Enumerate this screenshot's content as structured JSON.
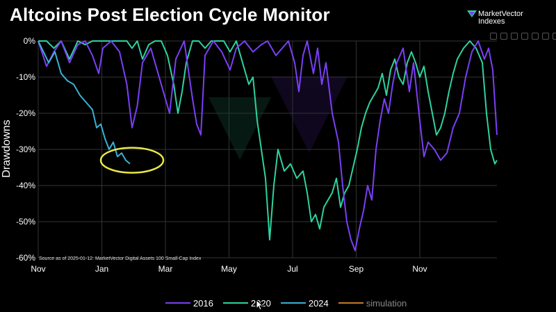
{
  "header": {
    "title": "Altcoins Post Election Cycle Monitor",
    "logo_line1": "MarketVector",
    "logo_line2": "Indexes"
  },
  "source_note": "Source as of 2025-01-12: MarketVector Digital Assets 100 Small-Cap Index",
  "colors": {
    "2016": "#7b3ff5",
    "2020": "#2ed3a0",
    "2024": "#38b2d6",
    "simulation": "#c57a2a",
    "annotation": "#e8e84a",
    "background": "#000000",
    "grid": "#333333"
  },
  "chart_data": {
    "type": "line",
    "title": "Altcoins Post Election Cycle Monitor",
    "xlabel": "",
    "ylabel": "Drawdowns",
    "x_ticks": [
      "Nov",
      "Jan",
      "Mar",
      "May",
      "Jul",
      "Sep",
      "Nov"
    ],
    "y_ticks": [
      "0%",
      "-10%",
      "-20%",
      "-30%",
      "-40%",
      "-50%",
      "-60%"
    ],
    "ylim": [
      -60,
      0
    ],
    "xlim_days": [
      0,
      440
    ],
    "x_unit": "days since election (approx.)",
    "grid": true,
    "legend_position": "bottom",
    "series": [
      {
        "name": "2016",
        "points": [
          [
            0,
            0
          ],
          [
            8,
            -7
          ],
          [
            15,
            -3
          ],
          [
            22,
            0
          ],
          [
            30,
            -6
          ],
          [
            38,
            -1
          ],
          [
            45,
            0
          ],
          [
            52,
            -4
          ],
          [
            58,
            -9
          ],
          [
            62,
            -2
          ],
          [
            70,
            0
          ],
          [
            78,
            -3
          ],
          [
            85,
            -12
          ],
          [
            90,
            -24
          ],
          [
            95,
            -18
          ],
          [
            100,
            -6
          ],
          [
            108,
            -2
          ],
          [
            115,
            -9
          ],
          [
            120,
            -14
          ],
          [
            126,
            -20
          ],
          [
            132,
            -5
          ],
          [
            140,
            0
          ],
          [
            148,
            -16
          ],
          [
            152,
            -23
          ],
          [
            156,
            -26
          ],
          [
            160,
            -4
          ],
          [
            168,
            0
          ],
          [
            176,
            -3
          ],
          [
            184,
            -8
          ],
          [
            190,
            -2
          ],
          [
            198,
            0
          ],
          [
            206,
            -3
          ],
          [
            214,
            -1
          ],
          [
            220,
            0
          ],
          [
            228,
            -4
          ],
          [
            234,
            -2
          ],
          [
            240,
            0
          ],
          [
            246,
            -6
          ],
          [
            250,
            -14
          ],
          [
            254,
            -4
          ],
          [
            258,
            0
          ],
          [
            264,
            -9
          ],
          [
            268,
            -2
          ],
          [
            272,
            -12
          ],
          [
            276,
            -6
          ],
          [
            282,
            -20
          ],
          [
            288,
            -28
          ],
          [
            292,
            -40
          ],
          [
            296,
            -50
          ],
          [
            300,
            -55
          ],
          [
            304,
            -58
          ],
          [
            308,
            -52
          ],
          [
            312,
            -47
          ],
          [
            316,
            -40
          ],
          [
            320,
            -44
          ],
          [
            324,
            -30
          ],
          [
            328,
            -22
          ],
          [
            332,
            -16
          ],
          [
            336,
            -20
          ],
          [
            340,
            -12
          ],
          [
            344,
            -6
          ],
          [
            350,
            -2
          ],
          [
            356,
            -14
          ],
          [
            360,
            -6
          ],
          [
            366,
            -22
          ],
          [
            370,
            -32
          ],
          [
            374,
            -28
          ],
          [
            380,
            -30
          ],
          [
            386,
            -33
          ],
          [
            392,
            -31
          ],
          [
            398,
            -24
          ],
          [
            404,
            -20
          ],
          [
            410,
            -10
          ],
          [
            416,
            -3
          ],
          [
            422,
            0
          ],
          [
            428,
            -5
          ],
          [
            432,
            -2
          ],
          [
            436,
            -8
          ],
          [
            440,
            -26
          ]
        ]
      },
      {
        "name": "2020",
        "points": [
          [
            0,
            0
          ],
          [
            8,
            0
          ],
          [
            15,
            -2
          ],
          [
            22,
            0
          ],
          [
            30,
            -5
          ],
          [
            38,
            0
          ],
          [
            45,
            -1
          ],
          [
            52,
            0
          ],
          [
            60,
            0
          ],
          [
            70,
            0
          ],
          [
            78,
            0
          ],
          [
            85,
            0
          ],
          [
            90,
            -2
          ],
          [
            95,
            0
          ],
          [
            100,
            -5
          ],
          [
            106,
            -1
          ],
          [
            112,
            0
          ],
          [
            118,
            0
          ],
          [
            124,
            -4
          ],
          [
            130,
            -12
          ],
          [
            134,
            -20
          ],
          [
            138,
            -14
          ],
          [
            142,
            -6
          ],
          [
            148,
            0
          ],
          [
            154,
            0
          ],
          [
            160,
            -2
          ],
          [
            166,
            0
          ],
          [
            172,
            0
          ],
          [
            178,
            0
          ],
          [
            184,
            -3
          ],
          [
            190,
            0
          ],
          [
            196,
            -6
          ],
          [
            202,
            -12
          ],
          [
            206,
            -10
          ],
          [
            210,
            -22
          ],
          [
            214,
            -30
          ],
          [
            218,
            -38
          ],
          [
            222,
            -55
          ],
          [
            226,
            -40
          ],
          [
            230,
            -30
          ],
          [
            236,
            -36
          ],
          [
            242,
            -34
          ],
          [
            248,
            -38
          ],
          [
            254,
            -36
          ],
          [
            258,
            -42
          ],
          [
            262,
            -50
          ],
          [
            266,
            -48
          ],
          [
            270,
            -52
          ],
          [
            274,
            -46
          ],
          [
            278,
            -44
          ],
          [
            282,
            -42
          ],
          [
            286,
            -38
          ],
          [
            290,
            -46
          ],
          [
            294,
            -42
          ],
          [
            298,
            -40
          ],
          [
            302,
            -35
          ],
          [
            306,
            -30
          ],
          [
            310,
            -24
          ],
          [
            314,
            -20
          ],
          [
            318,
            -17
          ],
          [
            322,
            -15
          ],
          [
            326,
            -13
          ],
          [
            330,
            -9
          ],
          [
            334,
            -15
          ],
          [
            338,
            -8
          ],
          [
            342,
            -5
          ],
          [
            346,
            -10
          ],
          [
            350,
            -12
          ],
          [
            354,
            -6
          ],
          [
            358,
            -3
          ],
          [
            362,
            -6
          ],
          [
            366,
            -10
          ],
          [
            370,
            -7
          ],
          [
            374,
            -14
          ],
          [
            378,
            -20
          ],
          [
            382,
            -26
          ],
          [
            386,
            -24
          ],
          [
            390,
            -20
          ],
          [
            394,
            -14
          ],
          [
            398,
            -9
          ],
          [
            402,
            -5
          ],
          [
            408,
            -2
          ],
          [
            414,
            0
          ],
          [
            420,
            -2
          ],
          [
            426,
            -6
          ],
          [
            430,
            -20
          ],
          [
            434,
            -30
          ],
          [
            438,
            -34
          ],
          [
            440,
            -33
          ]
        ]
      },
      {
        "name": "2024",
        "points": [
          [
            0,
            0
          ],
          [
            5,
            -3
          ],
          [
            10,
            -6
          ],
          [
            16,
            -3
          ],
          [
            22,
            -9
          ],
          [
            28,
            -11
          ],
          [
            34,
            -12
          ],
          [
            40,
            -15
          ],
          [
            46,
            -17
          ],
          [
            52,
            -19
          ],
          [
            56,
            -24
          ],
          [
            60,
            -23
          ],
          [
            64,
            -27
          ],
          [
            68,
            -30
          ],
          [
            72,
            -28
          ],
          [
            76,
            -32
          ],
          [
            80,
            -31
          ],
          [
            84,
            -33
          ],
          [
            88,
            -34
          ]
        ]
      },
      {
        "name": "simulation",
        "points": []
      }
    ]
  },
  "annotation": {
    "shape": "ellipse",
    "target_series": "2024",
    "target_days": [
      60,
      120
    ],
    "target_drawdown": -33
  },
  "legend": [
    {
      "name": "2016"
    },
    {
      "name": "2020"
    },
    {
      "name": "2024"
    },
    {
      "name": "simulation"
    }
  ]
}
